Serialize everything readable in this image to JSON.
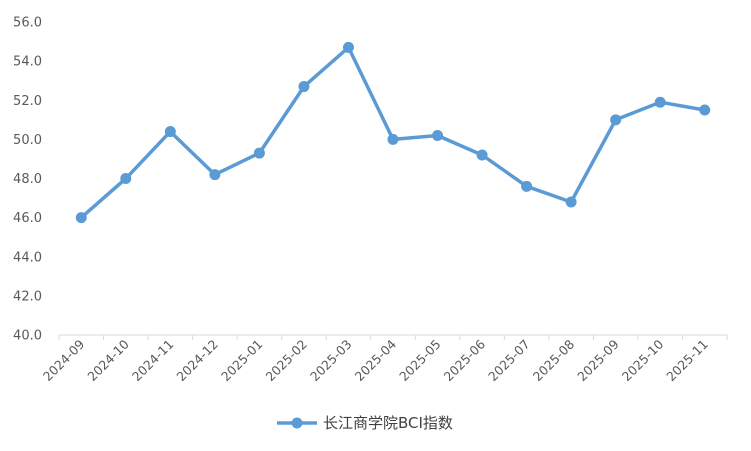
{
  "chart_data": {
    "type": "line",
    "title": "",
    "xlabel": "",
    "ylabel": "",
    "categories": [
      "2024-09",
      "2024-10",
      "2024-11",
      "2024-12",
      "2025-01",
      "2025-02",
      "2025-03",
      "2025-04",
      "2025-05",
      "2025-06",
      "2025-07",
      "2025-08",
      "2025-09",
      "2025-10",
      "2025-11"
    ],
    "series": [
      {
        "name": "长江商学院BCI指数",
        "values": [
          46.0,
          48.0,
          50.4,
          48.2,
          49.3,
          52.7,
          54.7,
          50.0,
          50.2,
          49.2,
          47.6,
          46.8,
          51.0,
          51.9,
          51.5
        ]
      }
    ],
    "ylim": [
      40.0,
      56.0
    ],
    "yticks": [
      "40.0",
      "42.0",
      "44.0",
      "46.0",
      "48.0",
      "50.0",
      "52.0",
      "54.0",
      "56.0"
    ],
    "grid": false,
    "legend_position": "bottom",
    "colors": {
      "series": "#5B9BD5",
      "axis": "#D9D9D9",
      "text": "#595959"
    }
  }
}
